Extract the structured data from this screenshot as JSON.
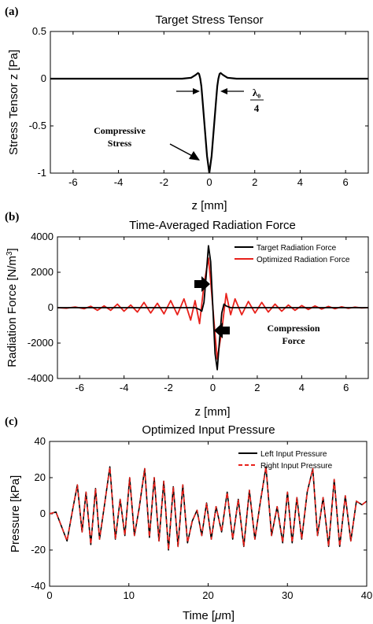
{
  "chart_data": [
    {
      "type": "line",
      "panel_label": "(a)",
      "title": "Target Stress Tensor",
      "xlabel": "z [mm]",
      "ylabel": "Stress Tensor z [Pa]",
      "xlim": [
        -7,
        7
      ],
      "ylim": [
        -1,
        0.5
      ],
      "xticks": [
        -6,
        -4,
        -2,
        0,
        2,
        4,
        6
      ],
      "yticks": [
        0.5,
        0,
        -0.5,
        -1
      ],
      "grid": false,
      "series": [
        {
          "color": "#000000",
          "x": [
            -7,
            -1.2,
            -0.8,
            -0.6,
            -0.5,
            -0.45,
            -0.4,
            -0.35,
            -0.3,
            -0.2,
            -0.1,
            0,
            0.1,
            0.2,
            0.3,
            0.35,
            0.4,
            0.45,
            0.5,
            0.6,
            0.8,
            1.2,
            7
          ],
          "y": [
            0,
            0,
            0.01,
            0.04,
            0.06,
            0.05,
            0.0,
            -0.08,
            -0.22,
            -0.52,
            -0.82,
            -1.0,
            -0.82,
            -0.52,
            -0.22,
            -0.08,
            0.0,
            0.05,
            0.06,
            0.04,
            0.01,
            0,
            0
          ]
        }
      ],
      "annotations": [
        {
          "text_lines": [
            "Compressive",
            "Stress"
          ],
          "data_x": -3.6,
          "data_y": -0.5
        },
        {
          "text": "λ₀",
          "note": "fraction λ₀/4"
        },
        {
          "text": "4"
        }
      ]
    },
    {
      "type": "line",
      "panel_label": "(b)",
      "title": "Time-Averaged Radiation Force",
      "xlabel": "z [mm]",
      "ylabel": "Radiation Force [N/m³]",
      "ylabel_main": "Radiation Force [N/m",
      "ylabel_sup": "3",
      "ylabel_end": "]",
      "xlim": [
        -7,
        7
      ],
      "ylim": [
        -4000,
        4000
      ],
      "xticks": [
        -6,
        -4,
        -2,
        0,
        2,
        4,
        6
      ],
      "yticks": [
        4000,
        2000,
        0,
        -2000,
        -4000
      ],
      "grid": false,
      "legend_position": "top-right",
      "series": [
        {
          "name": "Target Radiation Force",
          "color": "#000000",
          "x": [
            -7,
            -0.8,
            -0.6,
            -0.5,
            -0.4,
            -0.3,
            -0.2,
            -0.1,
            0,
            0.1,
            0.2,
            0.3,
            0.4,
            0.5,
            0.6,
            0.8,
            7
          ],
          "y": [
            0,
            0,
            -100,
            -200,
            300,
            1800,
            3500,
            2600,
            0,
            -2600,
            -3500,
            -1800,
            -300,
            200,
            100,
            0,
            0
          ]
        },
        {
          "name": "Optimized Radiation Force",
          "color": "#e8211b",
          "x": [
            -7,
            -6.6,
            -6.2,
            -5.8,
            -5.5,
            -5.2,
            -4.9,
            -4.6,
            -4.3,
            -4.0,
            -3.7,
            -3.4,
            -3.1,
            -2.8,
            -2.5,
            -2.2,
            -1.9,
            -1.6,
            -1.3,
            -1.0,
            -0.8,
            -0.6,
            -0.4,
            -0.2,
            -0.1,
            0,
            0.1,
            0.2,
            0.4,
            0.6,
            0.8,
            1.0,
            1.3,
            1.6,
            1.9,
            2.2,
            2.5,
            2.8,
            3.1,
            3.4,
            3.7,
            4.0,
            4.3,
            4.6,
            4.9,
            5.2,
            5.5,
            5.8,
            6.1,
            6.4,
            6.7,
            7
          ],
          "y": [
            0,
            -30,
            40,
            -60,
            80,
            -150,
            100,
            -150,
            200,
            -200,
            150,
            -250,
            300,
            -300,
            250,
            -350,
            400,
            -400,
            500,
            -700,
            400,
            -900,
            1300,
            2800,
            1500,
            0,
            -1500,
            -2900,
            -1300,
            800,
            -400,
            500,
            -400,
            350,
            -300,
            300,
            -250,
            200,
            -200,
            150,
            -150,
            120,
            -100,
            100,
            -80,
            70,
            -60,
            50,
            -40,
            30,
            -20,
            0
          ]
        }
      ],
      "annotations": [
        {
          "text_lines": [
            "Compression",
            "Force"
          ],
          "data_x": 4.1,
          "data_y": -1500
        }
      ]
    },
    {
      "type": "line",
      "panel_label": "(c)",
      "title": "Optimized Input Pressure",
      "xlabel": "Time [μm]",
      "xlabel_main": "Time [",
      "xlabel_mu": "μ",
      "xlabel_end": "m]",
      "ylabel": "Pressure [kPa]",
      "xlim": [
        0,
        40
      ],
      "ylim": [
        -40,
        40
      ],
      "xticks": [
        0,
        10,
        20,
        30,
        40
      ],
      "yticks": [
        40,
        20,
        0,
        -20,
        -40
      ],
      "grid": false,
      "legend_position": "top-right",
      "series": [
        {
          "name": "Left Input Pressure",
          "color": "#000000",
          "dash": "solid",
          "x": [
            0,
            0.8,
            1.6,
            2.2,
            2.9,
            3.5,
            4.1,
            4.6,
            5.2,
            5.8,
            6.3,
            6.9,
            7.6,
            8.3,
            8.9,
            9.5,
            10.1,
            10.7,
            11.3,
            12.0,
            12.6,
            13.2,
            13.8,
            14.4,
            15.0,
            15.6,
            16.2,
            16.8,
            17.4,
            18.0,
            18.6,
            19.2,
            19.8,
            20.4,
            21.0,
            21.7,
            22.4,
            23.1,
            23.8,
            24.5,
            25.2,
            25.9,
            26.6,
            27.3,
            28.0,
            28.7,
            29.4,
            30.0,
            30.6,
            31.2,
            31.8,
            32.5,
            33.2,
            33.8,
            34.5,
            35.2,
            35.9,
            36.6,
            37.3,
            38.0,
            38.7,
            39.4,
            40
          ],
          "y": [
            0,
            1,
            -8,
            -15,
            2,
            16,
            -10,
            12,
            -17,
            14,
            -14,
            4,
            26,
            -14,
            8,
            -12,
            20,
            -12,
            3,
            25,
            -13,
            20,
            -15,
            18,
            -20,
            15,
            -18,
            16,
            -16,
            -4,
            2,
            -12,
            6,
            -14,
            4,
            -10,
            12,
            -14,
            8,
            -18,
            13,
            -14,
            7,
            26,
            -12,
            4,
            -16,
            12,
            -16,
            9,
            -14,
            12,
            25,
            -12,
            9,
            -18,
            19,
            -18,
            10,
            -15,
            7,
            5,
            7
          ]
        },
        {
          "name": "Right Input Pressure",
          "color": "#e8211b",
          "dash": "dashed",
          "same_as": "Left Input Pressure"
        }
      ]
    }
  ]
}
